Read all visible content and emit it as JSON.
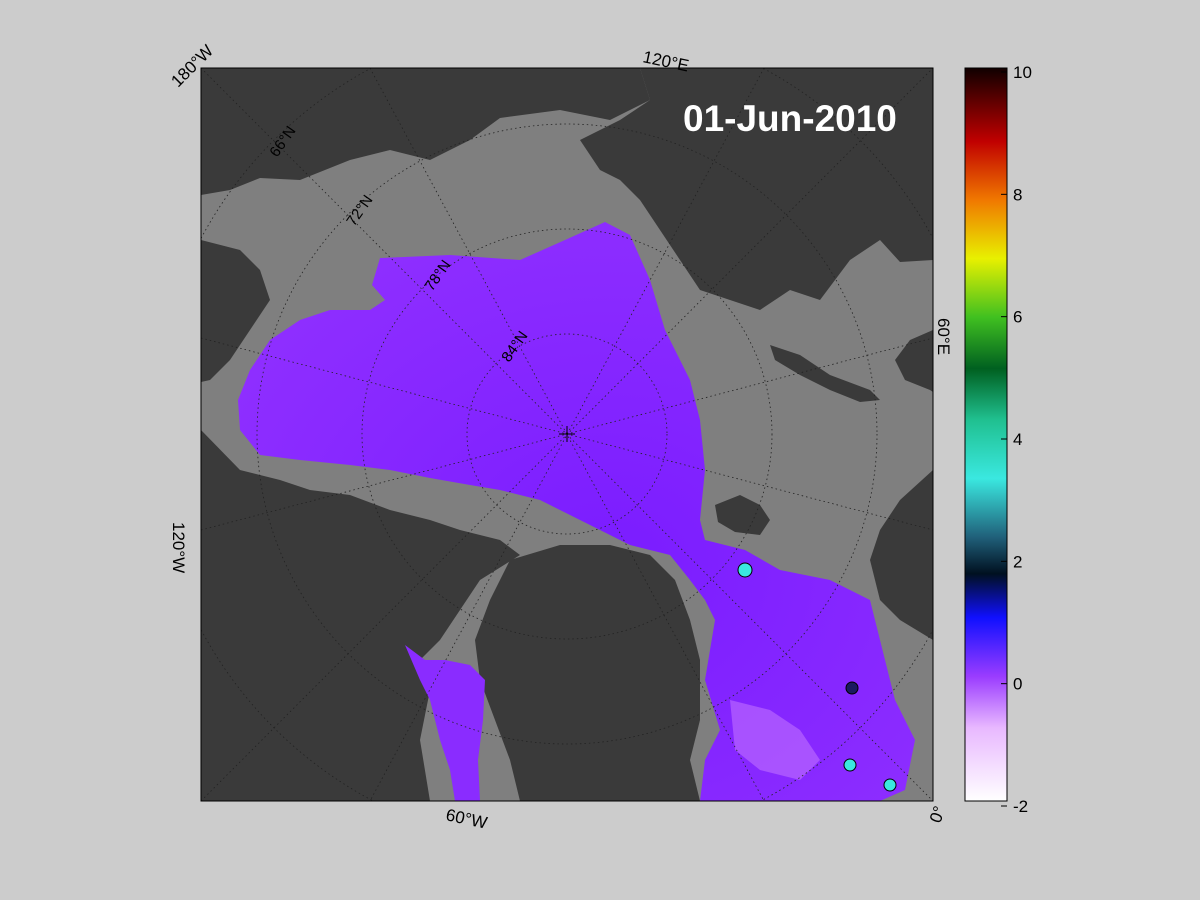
{
  "map": {
    "date": "01-Jun-2010",
    "projection": "north-polar-stereographic",
    "colors": {
      "background": "#cccccc",
      "ocean": "#7f7f7f",
      "land": "#3a3a3a",
      "ice_main": "#8a22ff",
      "ice_light": "#b060ff"
    },
    "longitude_labels": [
      {
        "text": "180°W"
      },
      {
        "text": "120°E"
      },
      {
        "text": "60°E"
      },
      {
        "text": "0°"
      },
      {
        "text": "60°W"
      },
      {
        "text": "120°W"
      }
    ],
    "latitude_labels": [
      {
        "text": "66°N"
      },
      {
        "text": "72°N"
      },
      {
        "text": "78°N"
      },
      {
        "text": "84°N"
      }
    ]
  },
  "colorbar": {
    "min": -2,
    "max": 10,
    "ticks": [
      "10",
      "8",
      "6",
      "4",
      "2",
      "0",
      "-2"
    ]
  }
}
